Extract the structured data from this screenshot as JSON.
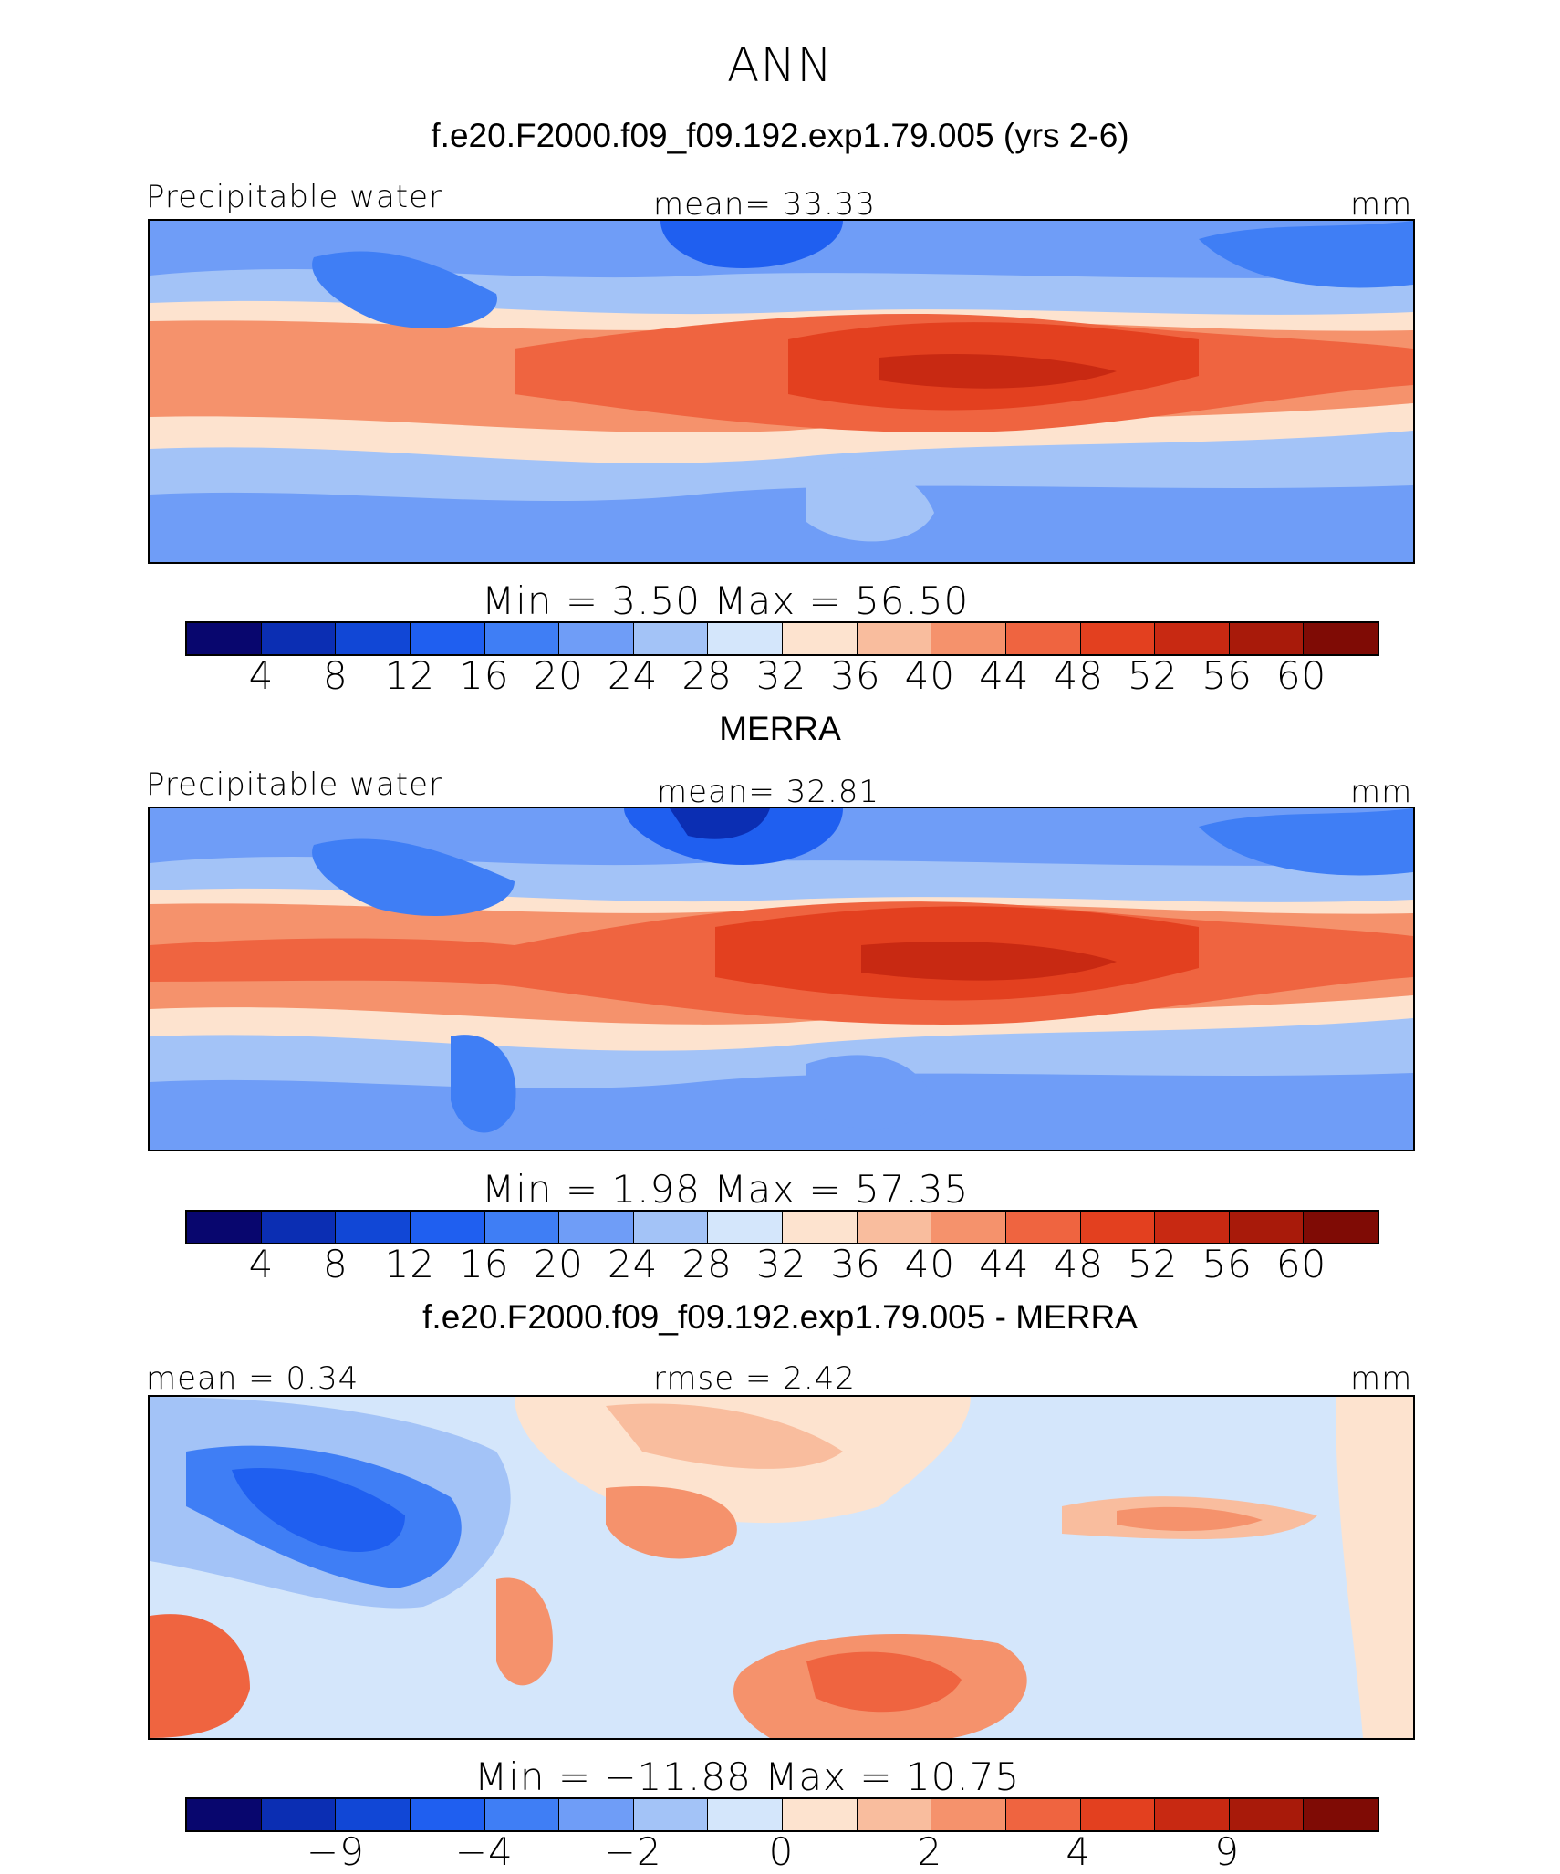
{
  "title": "ANN",
  "panels": [
    {
      "subtitle": "f.e20.F2000.f09_f09.192.exp1.79.005 (yrs 2-6)",
      "left_label": "Precipitable water",
      "center_label": "mean=   33.33",
      "units": "mm",
      "minmax": "Min  =      3.50  Max  =     56.50",
      "colorbar": {
        "colors": [
          "#08066e",
          "#0b2eb3",
          "#1147d6",
          "#1f5ff0",
          "#3f7ef5",
          "#6f9df7",
          "#a3c3f7",
          "#d4e6fb",
          "#fde3cf",
          "#f9bd9e",
          "#f5926c",
          "#ef6440",
          "#e3401f",
          "#c82912",
          "#a81a0a",
          "#7f0b05"
        ],
        "ticks": [
          "4",
          "8",
          "12",
          "16",
          "20",
          "24",
          "28",
          "32",
          "36",
          "40",
          "44",
          "48",
          "52",
          "56",
          "60"
        ]
      }
    },
    {
      "subtitle": "MERRA",
      "left_label": "Precipitable water",
      "center_label": "mean=   32.81",
      "units": "mm",
      "minmax": "Min  =      1.98  Max  =     57.35",
      "colorbar": {
        "colors": [
          "#08066e",
          "#0b2eb3",
          "#1147d6",
          "#1f5ff0",
          "#3f7ef5",
          "#6f9df7",
          "#a3c3f7",
          "#d4e6fb",
          "#fde3cf",
          "#f9bd9e",
          "#f5926c",
          "#ef6440",
          "#e3401f",
          "#c82912",
          "#a81a0a",
          "#7f0b05"
        ],
        "ticks": [
          "4",
          "8",
          "12",
          "16",
          "20",
          "24",
          "28",
          "32",
          "36",
          "40",
          "44",
          "48",
          "52",
          "56",
          "60"
        ]
      }
    },
    {
      "subtitle": "f.e20.F2000.f09_f09.192.exp1.79.005 - MERRA",
      "left_label": "mean =    0.34",
      "center_label": "rmse =    2.42",
      "units": "mm",
      "minmax": "Min  = −11.88  Max  =    10.75",
      "colorbar": {
        "colors": [
          "#08066e",
          "#0b2eb3",
          "#1147d6",
          "#1f5ff0",
          "#3f7ef5",
          "#6f9df7",
          "#a3c3f7",
          "#d4e6fb",
          "#fde3cf",
          "#f9bd9e",
          "#f5926c",
          "#ef6440",
          "#e3401f",
          "#c82912",
          "#a81a0a",
          "#7f0b05"
        ],
        "ticks": [
          "−9",
          "−4",
          "−2",
          "0",
          "2",
          "4",
          "9"
        ]
      }
    }
  ]
}
